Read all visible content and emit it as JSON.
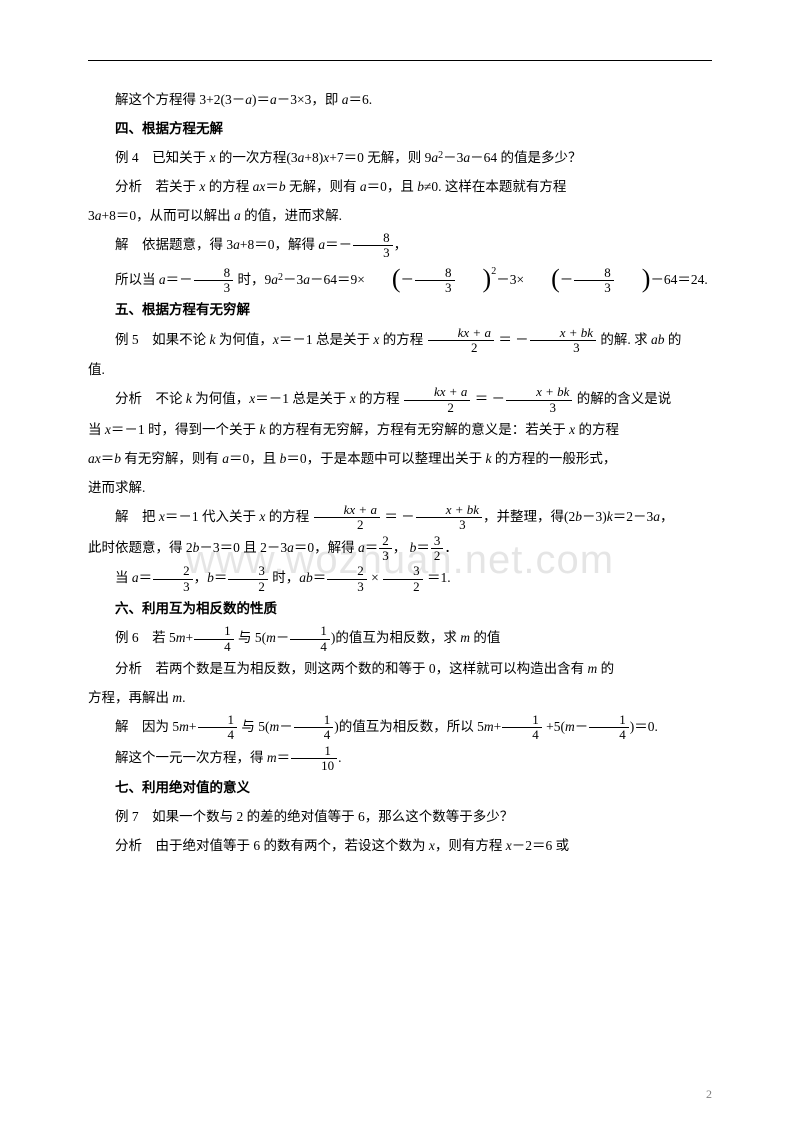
{
  "watermark": "www.wozhuan.net.com",
  "pageNumber": "2",
  "lines": {
    "l1_a": "解这个方程得 3+2(3－",
    "l1_b": ")＝",
    "l1_c": "－3×3，即 ",
    "l1_d": "＝6.",
    "h4": "四、根据方程无解",
    "l2_a": "例 4　已知关于 ",
    "l2_b": " 的一次方程(3",
    "l2_c": "+8)",
    "l2_d": "+7＝0 无解，则 9",
    "l2_e": "－3",
    "l2_f": "－64 的值是多少？",
    "l3_a": "分析　若关于 ",
    "l3_b": " 的方程 ",
    "l3_c": "＝",
    "l3_d": " 无解，则有 ",
    "l3_e": "＝0，且 ",
    "l3_f": "≠0. 这样在本题就有方程",
    "l4_a": "3",
    "l4_b": "+8＝0，从而可以解出 ",
    "l4_c": " 的值，进而求解.",
    "l5_a": "解　依据题意，得 3",
    "l5_b": "+8＝0，解得 ",
    "l5_c": "＝－",
    "l5_d": "，",
    "l6_a": "所以当 ",
    "l6_b": "＝－",
    "l6_c": " 时，9",
    "l6_d": "－3",
    "l6_e": "－64＝9×",
    "l6_f": "－3×",
    "l6_g": "－64＝24.",
    "h5": "五、根据方程有无穷解",
    "l7_a": "例 5　如果不论 ",
    "l7_b": " 为何值，",
    "l7_c": "＝－1 总是关于 ",
    "l7_d": " 的方程 ",
    "l7_e": " 的解. 求 ",
    "l7_f": " 的",
    "l7_g": "值.",
    "l8_a": "分析　不论 ",
    "l8_b": " 为何值，",
    "l8_c": "＝－1 总是关于 ",
    "l8_d": " 的方程 ",
    "l8_e": " 的解的含义是说",
    "l9_a": "当 ",
    "l9_b": "＝－1 时，得到一个关于 ",
    "l9_c": " 的方程有无穷解，方程有无穷解的意义是：若关于 ",
    "l9_d": " 的方程",
    "l10_a": "＝",
    "l10_b": " 有无穷解，则有 ",
    "l10_c": "＝0，且 ",
    "l10_d": "＝0，于是本题中可以整理出关于 ",
    "l10_e": " 的方程的一般形式，",
    "l10_f": "进而求解.",
    "l11_a": "解　把 ",
    "l11_b": "＝－1 代入关于 ",
    "l11_c": " 的方程 ",
    "l11_d": "，并整理，得(2",
    "l11_e": "－3)",
    "l11_f": "＝2－3",
    "l11_g": "，",
    "l12_a": "此时依题意，得 2",
    "l12_b": "－3＝0 且 2－3",
    "l12_c": "＝0，解得 ",
    "l12_d": "＝",
    "l12_e": "， ",
    "l12_f": "＝",
    "l12_g": "．",
    "l13_a": "当 ",
    "l13_b": "＝",
    "l13_c": "，",
    "l13_d": "＝",
    "l13_e": " 时，",
    "l13_f": "＝",
    "l13_g": " × ",
    "l13_h": " ＝1.",
    "h6": "六、利用互为相反数的性质",
    "l14_a": "例 6　若 5",
    "l14_b": "+",
    "l14_c": " 与 5(",
    "l14_d": "－",
    "l14_e": ")的值互为相反数，求 ",
    "l14_f": " 的值",
    "l15_a": "分析　若两个数是互为相反数，则这两个数的和等于 0，这样就可以构造出含有 ",
    "l15_b": " 的",
    "l15_c": "方程，再解出 ",
    "l15_d": ".",
    "l16_a": "解　因为 5",
    "l16_b": "+",
    "l16_c": " 与 5(",
    "l16_d": "－",
    "l16_e": ")的值互为相反数，所以 5",
    "l16_f": "+",
    "l16_g": " +5(",
    "l16_h": "－",
    "l16_i": ")＝0.",
    "l17_a": "解这个一元一次方程，得 ",
    "l17_b": "＝",
    "l17_c": ".",
    "h7": "七、利用绝对值的意义",
    "l18_a": "例 7　如果一个数与 2 的差的绝对值等于 6，那么这个数等于多少？",
    "l19_a": "分析　由于绝对值等于 6 的数有两个，若设这个数为 ",
    "l19_b": "，则有方程 ",
    "l19_c": "－2＝6 或"
  },
  "fracs": {
    "f83n": "8",
    "f83d": "3",
    "kxan": "kx + a",
    "kxad": "2",
    "xbkn": "x + bk",
    "xbkd": "3",
    "f23n": "2",
    "f23d": "3",
    "f32n": "3",
    "f32d": "2",
    "f14n": "1",
    "f14d": "4",
    "f110n": "1",
    "f110d": "10"
  }
}
